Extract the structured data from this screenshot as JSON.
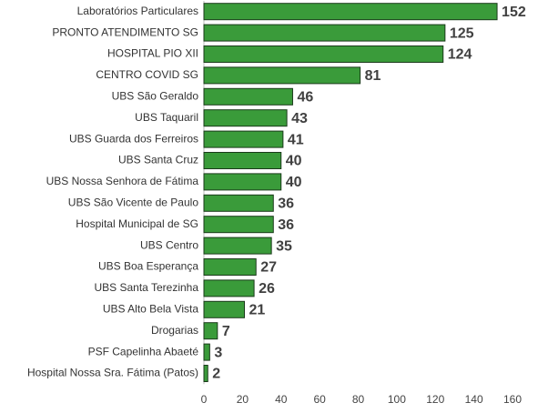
{
  "chart_data": {
    "type": "barh",
    "categories": [
      "Laboratórios Particulares",
      "PRONTO ATENDIMENTO SG",
      "HOSPITAL PIO XII",
      "CENTRO COVID SG",
      "UBS São Geraldo",
      "UBS Taquaril",
      "UBS Guarda dos Ferreiros",
      "UBS Santa Cruz",
      "UBS Nossa Senhora de Fátima",
      "UBS São Vicente de Paulo",
      "Hospital Municipal de SG",
      "UBS Centro",
      "UBS Boa Esperança",
      "UBS Santa Terezinha",
      "UBS Alto Bela Vista",
      "Drogarias",
      "PSF Capelinha Abaeté",
      "Hospital Nossa Sra. Fátima (Patos)"
    ],
    "values": [
      152,
      125,
      124,
      81,
      46,
      43,
      41,
      40,
      40,
      36,
      36,
      35,
      27,
      26,
      21,
      7,
      3,
      2
    ],
    "color": "#3a9b3a",
    "xlim": [
      0,
      160
    ],
    "xticks": [
      0,
      20,
      40,
      60,
      80,
      100,
      120,
      140,
      160
    ],
    "grid": false
  }
}
